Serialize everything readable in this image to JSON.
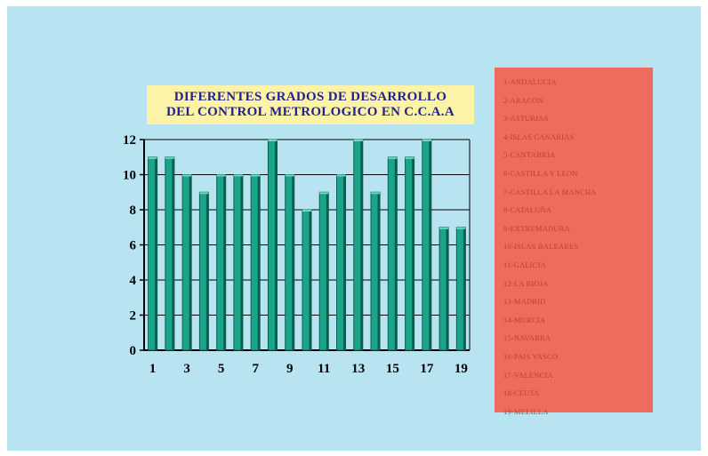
{
  "title": {
    "line1": "DIFERENTES GRADOS DE DESARROLLO",
    "line2": "DEL CONTROL METROLOGICO EN C.C.A.A"
  },
  "legend": [
    "1-ANDALUCIA",
    "2-ARAGON",
    "3-ASTURIAS",
    "4-ISLAS CANARIAS",
    "5-CANTABRIA",
    "6-CASTILLA Y LEON",
    "7-CASTILLA LA MANCHA",
    "8-CATALUÑA",
    "9-EXTREMADURA",
    "10-ISLAS BALEARES",
    "11-GALICIA",
    "12-LA RIOJA",
    "13-MADRID",
    "14-MURCIA",
    "15-NAVARRA",
    "16-PAIS VASCO",
    "17-VALENCIA",
    "18-CEUTA",
    "19-MELILLA"
  ],
  "colors": {
    "background": "#b8e4f1",
    "bar": "#1aa58a",
    "bar_dark": "#0b5e4d",
    "bar_top": "#6fd6bf",
    "title_bg": "#fdf3a6",
    "title_text": "#22228c",
    "legend_bg": "#ee6c5e",
    "legend_text": "#c83a2d"
  },
  "chart_data": {
    "type": "bar",
    "x": [
      1,
      2,
      3,
      4,
      5,
      6,
      7,
      8,
      9,
      10,
      11,
      12,
      13,
      14,
      15,
      16,
      17,
      18,
      19
    ],
    "values": [
      11,
      11,
      10,
      9,
      10,
      10,
      10,
      12,
      10,
      8,
      9,
      10,
      12,
      9,
      11,
      11,
      12,
      7,
      7
    ],
    "x_tick_labels": [
      "1",
      "3",
      "5",
      "7",
      "9",
      "11",
      "13",
      "15",
      "17",
      "19"
    ],
    "y_ticks": [
      0,
      2,
      4,
      6,
      8,
      10,
      12
    ],
    "ylim": [
      0,
      12
    ],
    "gridlines": "horizontal",
    "legend_position": "right"
  }
}
